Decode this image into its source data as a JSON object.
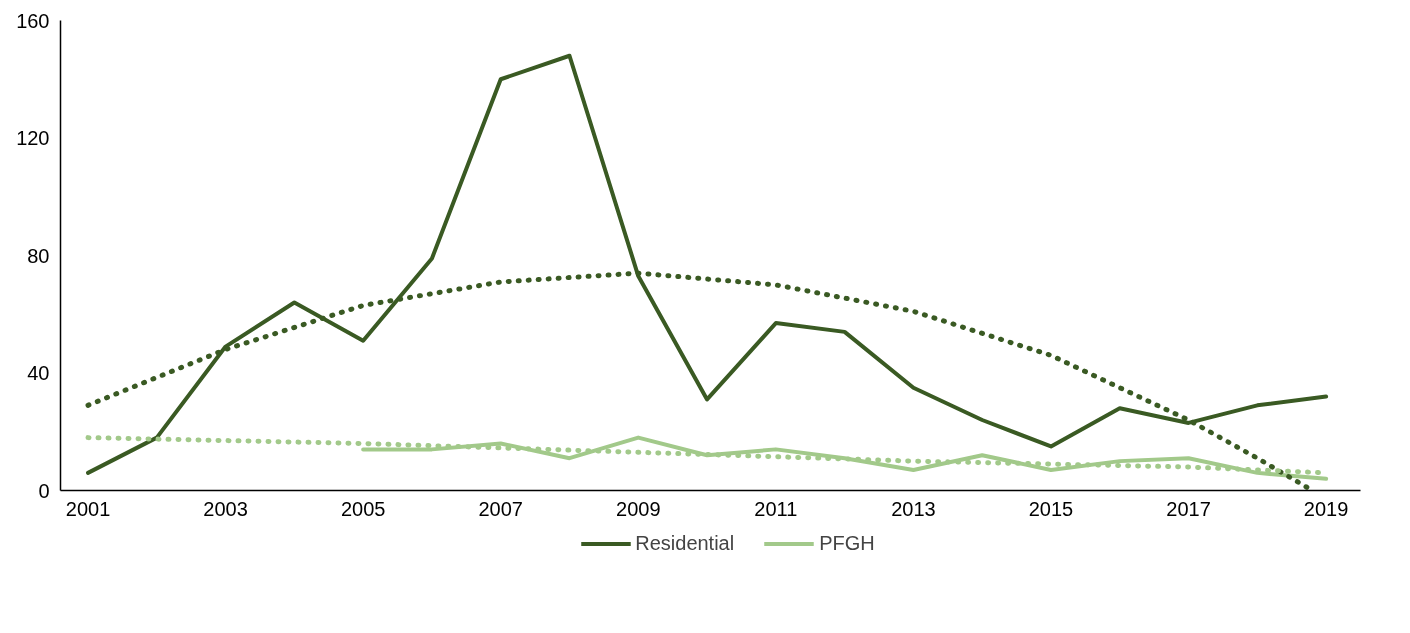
{
  "chart_data": {
    "type": "line",
    "xlim": [
      2000.6,
      2019.5
    ],
    "xticks": [
      2001,
      2003,
      2005,
      2007,
      2009,
      2011,
      2013,
      2015,
      2017,
      2019
    ],
    "ylim": [
      0,
      160
    ],
    "yticks": [
      0,
      40,
      80,
      120,
      160
    ],
    "grid": false,
    "legend": "bottom",
    "marker": "none",
    "series": [
      {
        "name": "Residential",
        "color": "#3a5a23",
        "line_style": "solid",
        "x": [
          2001,
          2002,
          2003,
          2004,
          2005,
          2006,
          2007,
          2008,
          2009,
          2010,
          2011,
          2012,
          2013,
          2014,
          2015,
          2016,
          2017,
          2018,
          2019
        ],
        "values": [
          6,
          18,
          49,
          64,
          51,
          79,
          140,
          148,
          73,
          31,
          57,
          54,
          35,
          24,
          15,
          28,
          23,
          29,
          32
        ]
      },
      {
        "name": "PFGH",
        "color": "#a2c98a",
        "line_style": "solid",
        "x": [
          2005,
          2006,
          2007,
          2008,
          2009,
          2010,
          2011,
          2012,
          2013,
          2014,
          2015,
          2016,
          2017,
          2018,
          2019
        ],
        "values": [
          14,
          14,
          16,
          11,
          18,
          12,
          14,
          11,
          7,
          12,
          7,
          10,
          11,
          6,
          4
        ]
      },
      {
        "color": "#3a5a23",
        "line_style": "dotted",
        "x": [
          2001,
          2003,
          2005,
          2007,
          2009,
          2011,
          2013,
          2015,
          2017,
          2018,
          2018.8
        ],
        "values": [
          29,
          48,
          63,
          71,
          74,
          70,
          61,
          46,
          24,
          11,
          0
        ]
      },
      {
        "color": "#a2c98a",
        "line_style": "dotted",
        "x": [
          2001,
          2005,
          2009,
          2013,
          2017,
          2019
        ],
        "values": [
          18,
          16,
          13,
          10,
          8,
          6
        ]
      }
    ]
  }
}
